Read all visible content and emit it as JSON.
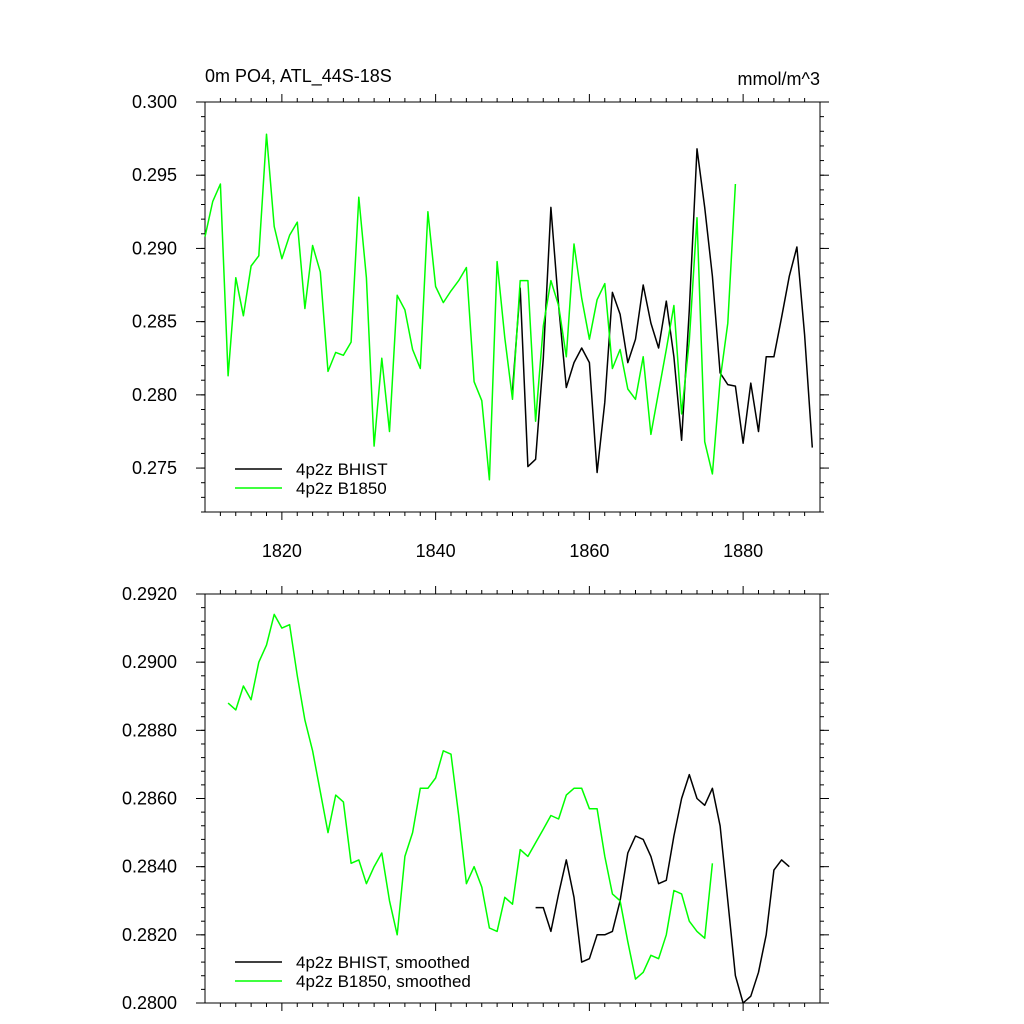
{
  "chart_data": [
    {
      "type": "line",
      "title": "0m PO4, ATL_44S-18S",
      "units": "mmol/m^3",
      "xlim": [
        1810,
        1890
      ],
      "ylim": [
        0.272,
        0.3
      ],
      "x_ticks": [
        1820,
        1840,
        1860,
        1880
      ],
      "x_tick_labels": [
        "1820",
        "1840",
        "1860",
        "1880"
      ],
      "y_ticks": [
        0.275,
        0.28,
        0.285,
        0.29,
        0.295,
        0.3
      ],
      "y_tick_labels": [
        "0.275",
        "0.280",
        "0.285",
        "0.290",
        "0.295",
        "0.300"
      ],
      "legend_position": "bottom-left",
      "series": [
        {
          "name": "4p2z BHIST",
          "color": "#000000",
          "x": [
            1850,
            1851,
            1852,
            1853,
            1854,
            1855,
            1856,
            1857,
            1858,
            1859,
            1860,
            1861,
            1862,
            1863,
            1864,
            1865,
            1866,
            1867,
            1868,
            1869,
            1870,
            1871,
            1872,
            1873,
            1874,
            1875,
            1876,
            1877,
            1878,
            1879,
            1880,
            1881,
            1882,
            1883,
            1884,
            1885,
            1886,
            1887,
            1888,
            1889
          ],
          "values": [
            0.2803,
            0.2873,
            0.2751,
            0.2756,
            0.2825,
            0.2928,
            0.2861,
            0.2805,
            0.2822,
            0.2832,
            0.2822,
            0.2747,
            0.2795,
            0.287,
            0.2855,
            0.2822,
            0.2838,
            0.2875,
            0.2849,
            0.2832,
            0.2864,
            0.2826,
            0.2769,
            0.2858,
            0.2968,
            0.2928,
            0.2881,
            0.2815,
            0.2807,
            0.2806,
            0.2767,
            0.2808,
            0.2775,
            0.2826,
            0.2826,
            0.2853,
            0.2881,
            0.2901,
            0.2841,
            0.2764
          ]
        },
        {
          "name": "4p2z B1850",
          "color": "#00ff00",
          "x": [
            1810,
            1811,
            1812,
            1813,
            1814,
            1815,
            1816,
            1817,
            1818,
            1819,
            1820,
            1821,
            1822,
            1823,
            1824,
            1825,
            1826,
            1827,
            1828,
            1829,
            1830,
            1831,
            1832,
            1833,
            1834,
            1835,
            1836,
            1837,
            1838,
            1839,
            1840,
            1841,
            1842,
            1843,
            1844,
            1845,
            1846,
            1847,
            1848,
            1849,
            1850,
            1851,
            1852,
            1853,
            1854,
            1855,
            1856,
            1857,
            1858,
            1859,
            1860,
            1861,
            1862,
            1863,
            1864,
            1865,
            1866,
            1867,
            1868,
            1869,
            1870,
            1871,
            1872,
            1873,
            1874,
            1875,
            1876,
            1877,
            1878,
            1879
          ],
          "values": [
            0.2908,
            0.2932,
            0.2944,
            0.2813,
            0.288,
            0.2854,
            0.2888,
            0.2895,
            0.2978,
            0.2915,
            0.2893,
            0.2909,
            0.2918,
            0.2859,
            0.2902,
            0.2884,
            0.2816,
            0.2829,
            0.2827,
            0.2836,
            0.2935,
            0.288,
            0.2765,
            0.2825,
            0.2775,
            0.2868,
            0.2858,
            0.2831,
            0.2818,
            0.2925,
            0.2874,
            0.2863,
            0.2871,
            0.2878,
            0.2887,
            0.2809,
            0.2796,
            0.2742,
            0.2891,
            0.2839,
            0.2797,
            0.2878,
            0.2878,
            0.2782,
            0.2847,
            0.2878,
            0.2861,
            0.2826,
            0.2903,
            0.2866,
            0.2838,
            0.2865,
            0.2876,
            0.2818,
            0.2831,
            0.2804,
            0.2797,
            0.2826,
            0.2773,
            0.2802,
            0.2831,
            0.2861,
            0.2787,
            0.2837,
            0.2921,
            0.2768,
            0.2746,
            0.281,
            0.2849,
            0.2944
          ]
        }
      ]
    },
    {
      "type": "line",
      "xlim": [
        1810,
        1890
      ],
      "ylim": [
        0.28,
        0.292
      ],
      "x_ticks": [
        1820,
        1840,
        1860,
        1880
      ],
      "y_ticks": [
        0.28,
        0.282,
        0.284,
        0.286,
        0.288,
        0.29,
        0.292
      ],
      "y_tick_labels": [
        "0.2800",
        "0.2820",
        "0.2840",
        "0.2860",
        "0.2880",
        "0.2900",
        "0.2920"
      ],
      "legend_position": "bottom-left",
      "series": [
        {
          "name": "4p2z BHIST, smoothed",
          "color": "#000000",
          "x": [
            1853,
            1854,
            1855,
            1856,
            1857,
            1858,
            1859,
            1860,
            1861,
            1862,
            1863,
            1864,
            1865,
            1866,
            1867,
            1868,
            1869,
            1870,
            1871,
            1872,
            1873,
            1874,
            1875,
            1876,
            1877,
            1878,
            1879,
            1880,
            1881,
            1882,
            1883,
            1884,
            1885,
            1886
          ],
          "values": [
            0.2828,
            0.2828,
            0.2821,
            0.2832,
            0.2842,
            0.2831,
            0.2812,
            0.2813,
            0.282,
            0.282,
            0.2821,
            0.283,
            0.2844,
            0.2849,
            0.2848,
            0.2843,
            0.2835,
            0.2836,
            0.2849,
            0.286,
            0.2867,
            0.286,
            0.2858,
            0.2863,
            0.2852,
            0.283,
            0.2808,
            0.28,
            0.2802,
            0.2809,
            0.282,
            0.2839,
            0.2842,
            0.284
          ]
        },
        {
          "name": "4p2z B1850, smoothed",
          "color": "#00ff00",
          "x": [
            1813,
            1814,
            1815,
            1816,
            1817,
            1818,
            1819,
            1820,
            1821,
            1822,
            1823,
            1824,
            1825,
            1826,
            1827,
            1828,
            1829,
            1830,
            1831,
            1832,
            1833,
            1834,
            1835,
            1836,
            1837,
            1838,
            1839,
            1840,
            1841,
            1842,
            1843,
            1844,
            1845,
            1846,
            1847,
            1848,
            1849,
            1850,
            1851,
            1852,
            1853,
            1854,
            1855,
            1856,
            1857,
            1858,
            1859,
            1860,
            1861,
            1862,
            1863,
            1864,
            1865,
            1866,
            1867,
            1868,
            1869,
            1870,
            1871,
            1872,
            1873,
            1874,
            1875,
            1876
          ],
          "values": [
            0.2888,
            0.2886,
            0.2893,
            0.2889,
            0.29,
            0.2905,
            0.2914,
            0.291,
            0.2911,
            0.2896,
            0.2883,
            0.2874,
            0.2862,
            0.285,
            0.2861,
            0.2859,
            0.2841,
            0.2842,
            0.2835,
            0.284,
            0.2844,
            0.283,
            0.282,
            0.2843,
            0.285,
            0.2863,
            0.2863,
            0.2866,
            0.2874,
            0.2873,
            0.2855,
            0.2835,
            0.284,
            0.2834,
            0.2822,
            0.2821,
            0.2831,
            0.2829,
            0.2845,
            0.2843,
            0.2847,
            0.2851,
            0.2855,
            0.2854,
            0.2861,
            0.2863,
            0.2863,
            0.2857,
            0.2857,
            0.2843,
            0.2832,
            0.283,
            0.2818,
            0.2807,
            0.2809,
            0.2814,
            0.2813,
            0.282,
            0.2833,
            0.2832,
            0.2824,
            0.2821,
            0.2819,
            0.2841
          ]
        }
      ]
    }
  ]
}
